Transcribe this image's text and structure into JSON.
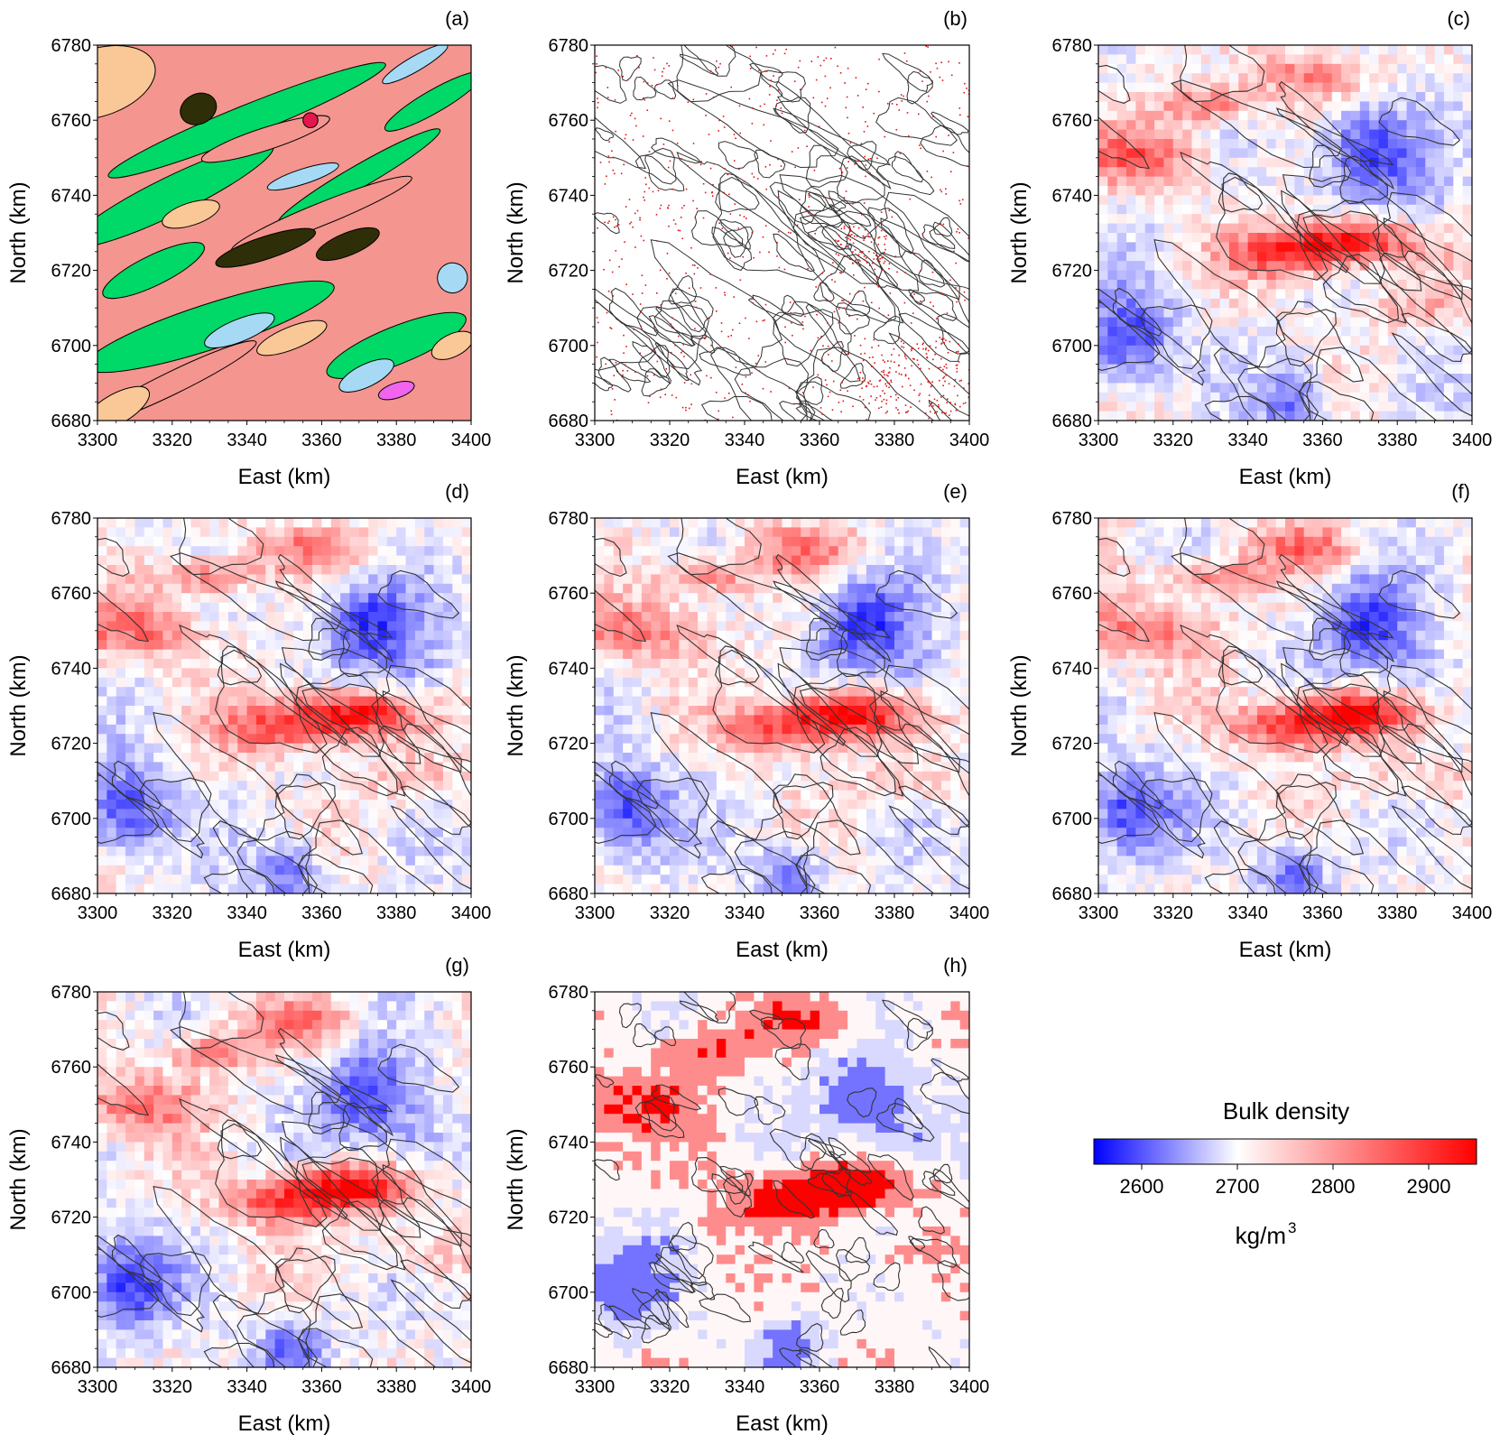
{
  "chart_data": {
    "type": "heatmap",
    "colors": {
      "low": "#0000ff",
      "mid": "#ffffff",
      "high": "#ff0000",
      "geology": [
        "#f9c896",
        "#00d867",
        "#f4958f",
        "#a6d9f4",
        "#2e2e09",
        "#e3174d",
        "#f064f0"
      ],
      "point": "#e01414",
      "outline": "#333333"
    },
    "x_range": [
      3300,
      3400
    ],
    "y_range": [
      6680,
      6780
    ],
    "x_ticks": [
      "3300",
      "3320",
      "3340",
      "3360",
      "3380",
      "3400"
    ],
    "y_ticks": [
      "6680",
      "6700",
      "6720",
      "6740",
      "6760",
      "6780"
    ],
    "xlabel": "East (km)",
    "ylabel": "North (km)",
    "panels": [
      {
        "id": "a",
        "label": "(a)",
        "kind": "geology-map"
      },
      {
        "id": "b",
        "label": "(b)",
        "kind": "sample-points"
      },
      {
        "id": "c",
        "label": "(c)",
        "kind": "density-grid"
      },
      {
        "id": "d",
        "label": "(d)",
        "kind": "density-grid"
      },
      {
        "id": "e",
        "label": "(e)",
        "kind": "density-grid"
      },
      {
        "id": "f",
        "label": "(f)",
        "kind": "density-grid"
      },
      {
        "id": "g",
        "label": "(g)",
        "kind": "density-grid"
      },
      {
        "id": "h",
        "label": "(h)",
        "kind": "density-classes"
      }
    ],
    "anomalies": {
      "positive": [
        {
          "x": 3368,
          "y": 6728,
          "amp": 1.0,
          "r": 9
        },
        {
          "x": 3350,
          "y": 6724,
          "amp": 0.7,
          "r": 9
        },
        {
          "x": 3310,
          "y": 6750,
          "amp": 0.55,
          "r": 11
        },
        {
          "x": 3330,
          "y": 6764,
          "amp": 0.6,
          "r": 7
        },
        {
          "x": 3355,
          "y": 6772,
          "amp": 0.5,
          "r": 9
        },
        {
          "x": 3385,
          "y": 6710,
          "amp": 0.3,
          "r": 8
        }
      ],
      "negative": [
        {
          "x": 3372,
          "y": 6752,
          "amp": 0.85,
          "r": 12
        },
        {
          "x": 3308,
          "y": 6702,
          "amp": 0.8,
          "r": 12
        },
        {
          "x": 3352,
          "y": 6685,
          "amp": 0.6,
          "r": 9
        },
        {
          "x": 3385,
          "y": 6740,
          "amp": 0.35,
          "r": 9
        }
      ]
    },
    "colorbar": {
      "title": "Bulk density",
      "unit": "kg/m",
      "unit_exponent": "3",
      "min": 2550,
      "max": 2950,
      "ticks": [
        2600,
        2700,
        2800,
        2900
      ],
      "tick_labels": [
        "2600",
        "2700",
        "2800",
        "2900"
      ]
    }
  }
}
